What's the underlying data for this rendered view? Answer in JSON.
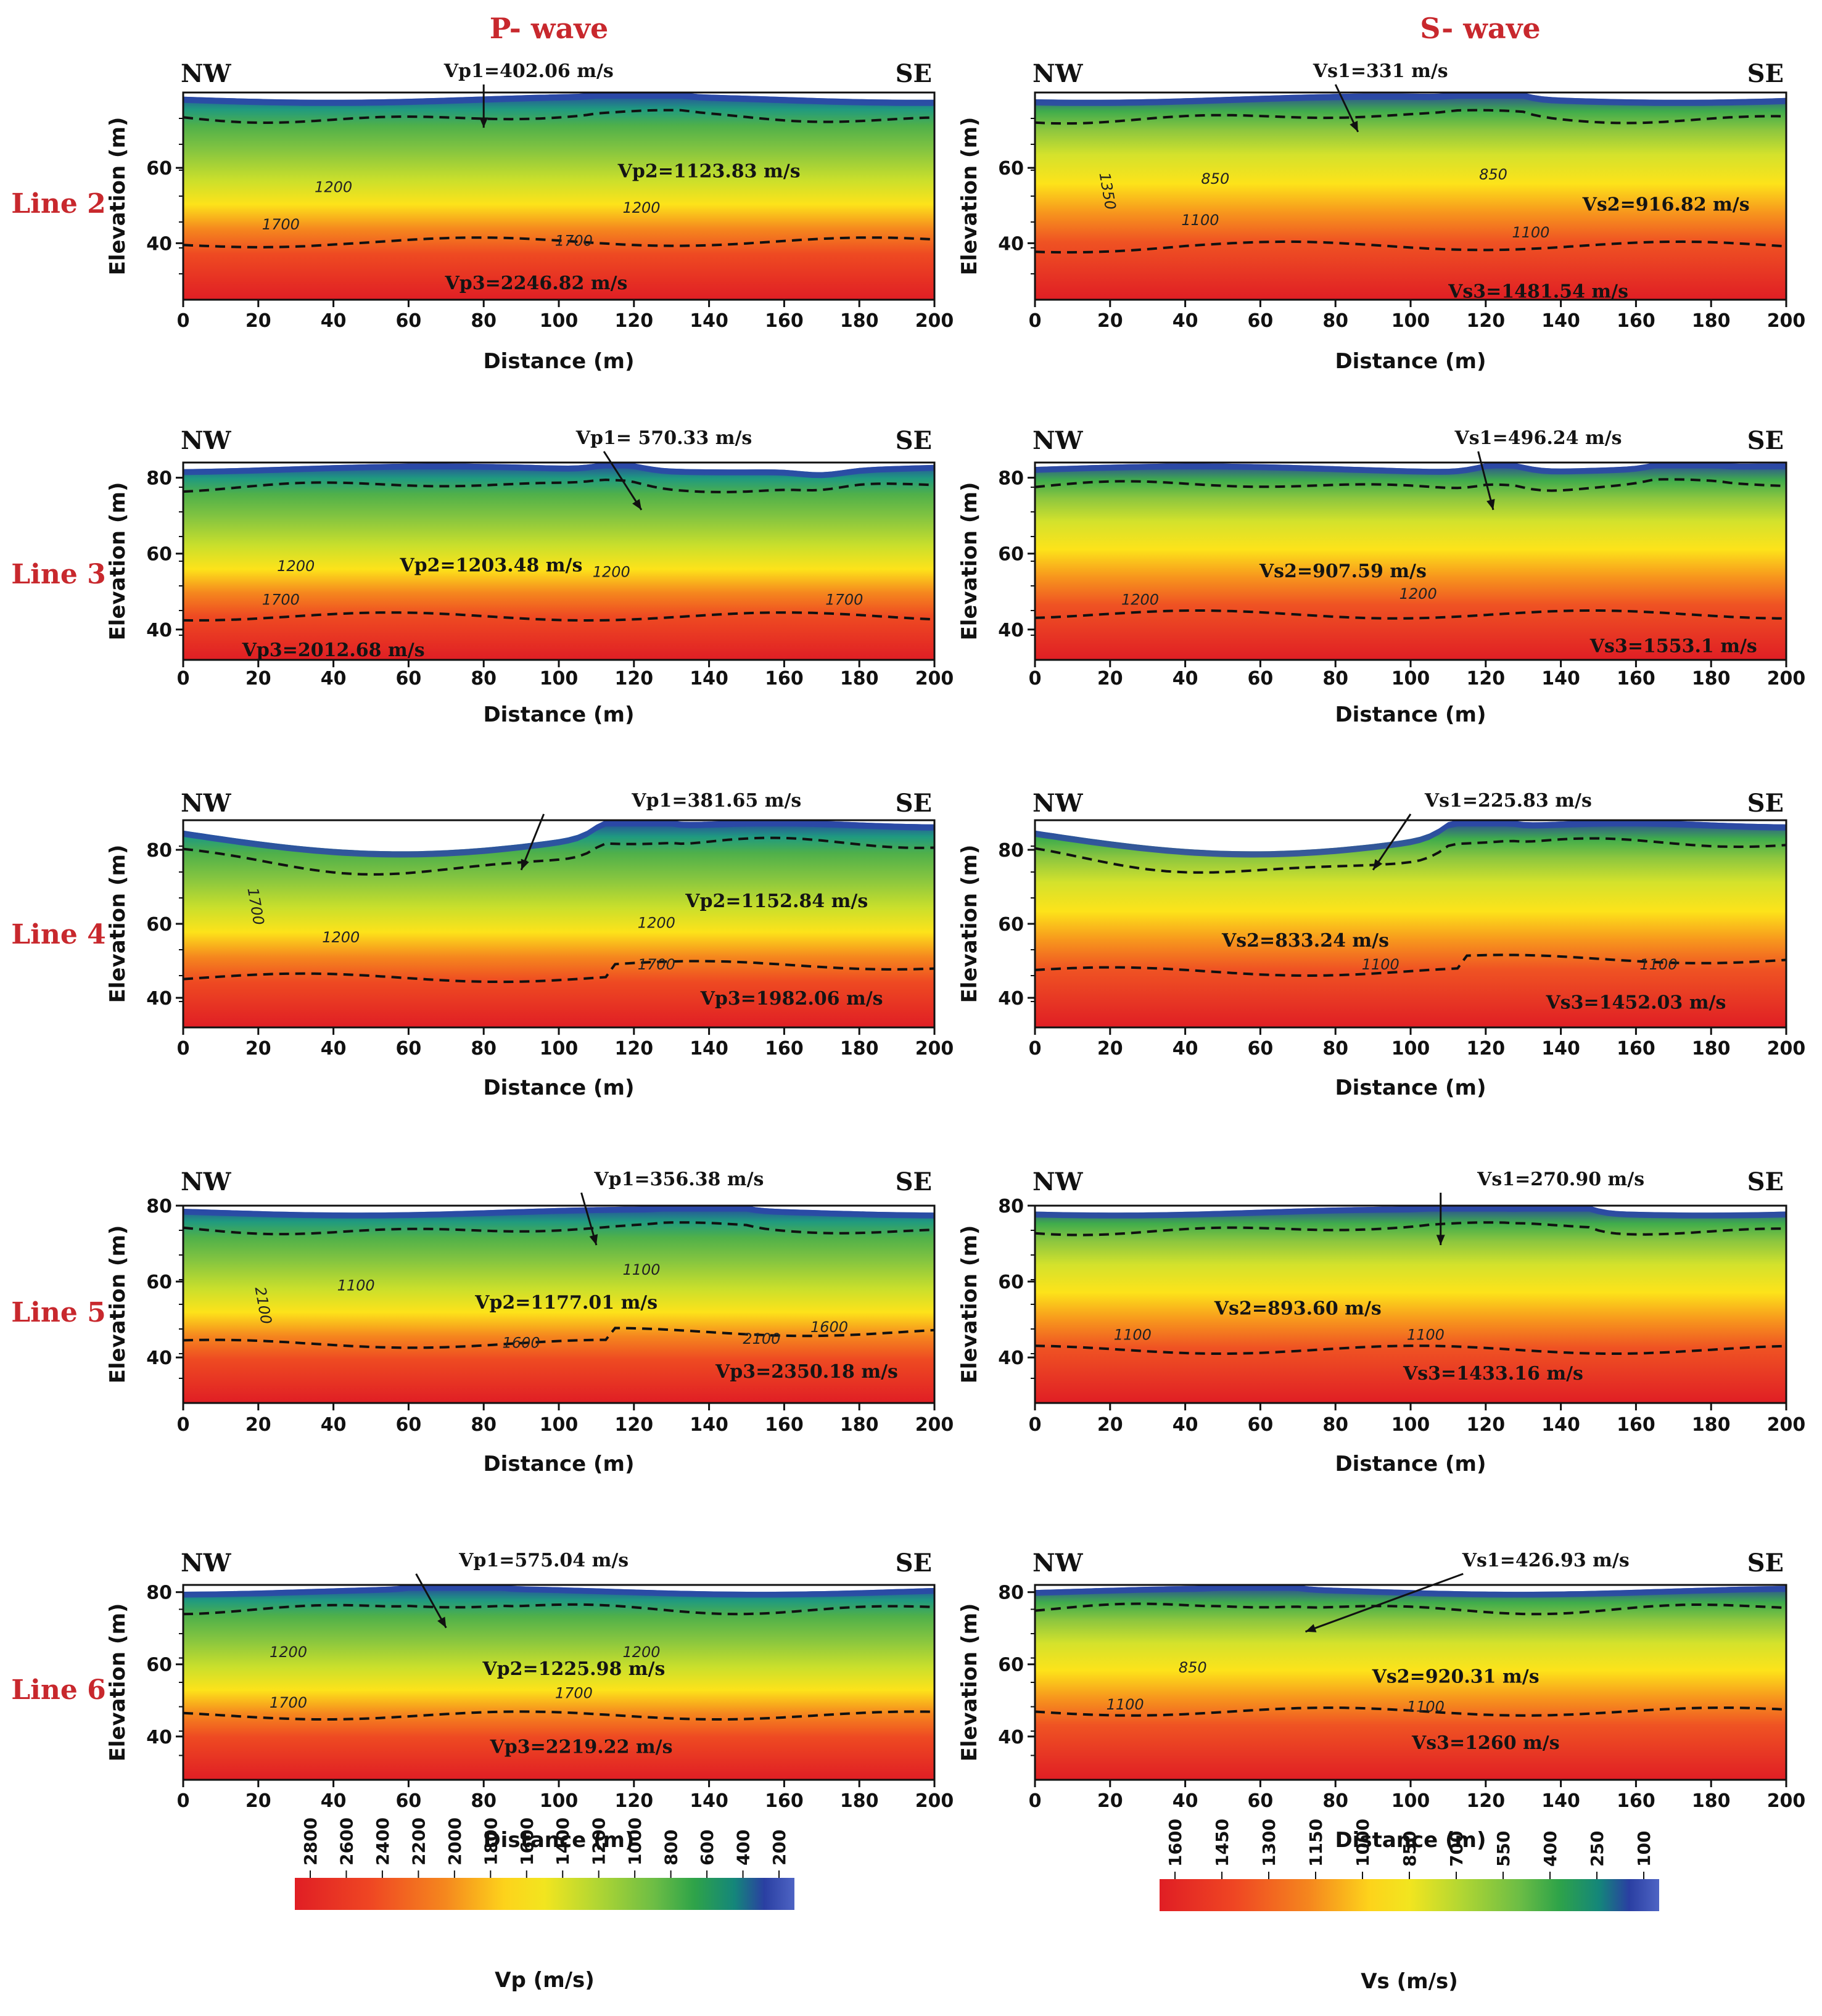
{
  "headers": {
    "p": "P- wave",
    "s": "S- wave"
  },
  "direction": {
    "left": "NW",
    "right": "SE"
  },
  "axes": {
    "xlabel": "Distance (m)",
    "ylabel": "Elevation (m)"
  },
  "colorbars": [
    {
      "id": "vp",
      "label": "Vp (m/s)",
      "ticks": [
        "2800",
        "2600",
        "2400",
        "2200",
        "2000",
        "1800",
        "1600",
        "1400",
        "1200",
        "1000",
        "800",
        "600",
        "400",
        "200"
      ]
    },
    {
      "id": "vs",
      "label": "Vs (m/s)",
      "ticks": [
        "1600",
        "1450",
        "1300",
        "1150",
        "1000",
        "850",
        "700",
        "550",
        "400",
        "250",
        "100"
      ]
    }
  ],
  "chart_data": [
    {
      "type": "heatmap",
      "line": "Line 2",
      "wave": "P",
      "xlim": [
        0,
        200
      ],
      "xticks": [
        0,
        20,
        40,
        60,
        80,
        100,
        120,
        140,
        160,
        180,
        200
      ],
      "ylim": [
        25,
        80
      ],
      "yticks": [
        40,
        60
      ],
      "layers": [
        "Vp1=402.06 m/s",
        "Vp2=1123.83 m/s",
        "Vp3=2246.82 m/s"
      ],
      "contours": [
        "1200",
        "1200",
        "1700",
        "1700"
      ]
    },
    {
      "type": "heatmap",
      "line": "Line 2",
      "wave": "S",
      "xlim": [
        0,
        200
      ],
      "xticks": [
        0,
        20,
        40,
        60,
        80,
        100,
        120,
        140,
        160,
        180,
        200
      ],
      "ylim": [
        25,
        80
      ],
      "yticks": [
        40,
        60
      ],
      "layers": [
        "Vs1=331 m/s",
        "Vs2=916.82 m/s",
        "Vs3=1481.54 m/s"
      ],
      "contours": [
        "1350",
        "850",
        "850",
        "1100",
        "1100"
      ]
    },
    {
      "type": "heatmap",
      "line": "Line 3",
      "wave": "P",
      "xlim": [
        0,
        200
      ],
      "xticks": [
        0,
        20,
        40,
        60,
        80,
        100,
        120,
        140,
        160,
        180,
        200
      ],
      "ylim": [
        32,
        84
      ],
      "yticks": [
        40,
        60,
        80
      ],
      "layers": [
        "Vp1= 570.33 m/s",
        "Vp2=1203.48 m/s",
        "Vp3=2012.68 m/s"
      ],
      "contours": [
        "1200",
        "1200",
        "1700",
        "1700"
      ]
    },
    {
      "type": "heatmap",
      "line": "Line 3",
      "wave": "S",
      "xlim": [
        0,
        200
      ],
      "xticks": [
        0,
        20,
        40,
        60,
        80,
        100,
        120,
        140,
        160,
        180,
        200
      ],
      "ylim": [
        32,
        84
      ],
      "yticks": [
        40,
        60,
        80
      ],
      "layers": [
        "Vs1=496.24 m/s",
        "Vs2=907.59 m/s",
        "Vs3=1553.1 m/s"
      ],
      "contours": [
        "1200",
        "1200"
      ]
    },
    {
      "type": "heatmap",
      "line": "Line 4",
      "wave": "P",
      "xlim": [
        0,
        200
      ],
      "xticks": [
        0,
        20,
        40,
        60,
        80,
        100,
        120,
        140,
        160,
        180,
        200
      ],
      "ylim": [
        32,
        88
      ],
      "yticks": [
        40,
        60,
        80
      ],
      "layers": [
        "Vp1=381.65 m/s",
        "Vp2=1152.84 m/s",
        "Vp3=1982.06 m/s"
      ],
      "contours": [
        "1700",
        "1200",
        "1200",
        "1700"
      ]
    },
    {
      "type": "heatmap",
      "line": "Line 4",
      "wave": "S",
      "xlim": [
        0,
        200
      ],
      "xticks": [
        0,
        20,
        40,
        60,
        80,
        100,
        120,
        140,
        160,
        180,
        200
      ],
      "ylim": [
        32,
        88
      ],
      "yticks": [
        40,
        60,
        80
      ],
      "layers": [
        "Vs1=225.83 m/s",
        "Vs2=833.24 m/s",
        "Vs3=1452.03 m/s"
      ],
      "contours": [
        "1100",
        "1100"
      ]
    },
    {
      "type": "heatmap",
      "line": "Line 5",
      "wave": "P",
      "xlim": [
        0,
        200
      ],
      "xticks": [
        0,
        20,
        40,
        60,
        80,
        100,
        120,
        140,
        160,
        180,
        200
      ],
      "ylim": [
        28,
        80
      ],
      "yticks": [
        40,
        60,
        80
      ],
      "layers": [
        "Vp1=356.38 m/s",
        "Vp2=1177.01 m/s",
        "Vp3=2350.18 m/s"
      ],
      "contours": [
        "2100",
        "1100",
        "1100",
        "1600",
        "1600",
        "2100"
      ]
    },
    {
      "type": "heatmap",
      "line": "Line 5",
      "wave": "S",
      "xlim": [
        0,
        200
      ],
      "xticks": [
        0,
        20,
        40,
        60,
        80,
        100,
        120,
        140,
        160,
        180,
        200
      ],
      "ylim": [
        28,
        80
      ],
      "yticks": [
        40,
        60,
        80
      ],
      "layers": [
        "Vs1=270.90 m/s",
        "Vs2=893.60 m/s",
        "Vs3=1433.16 m/s"
      ],
      "contours": [
        "1100",
        "1100"
      ]
    },
    {
      "type": "heatmap",
      "line": "Line 6",
      "wave": "P",
      "xlim": [
        0,
        200
      ],
      "xticks": [
        0,
        20,
        40,
        60,
        80,
        100,
        120,
        140,
        160,
        180,
        200
      ],
      "ylim": [
        28,
        82
      ],
      "yticks": [
        40,
        60,
        80
      ],
      "layers": [
        "Vp1=575.04 m/s",
        "Vp2=1225.98 m/s",
        "Vp3=2219.22 m/s"
      ],
      "contours": [
        "1200",
        "1200",
        "1700",
        "1700"
      ]
    },
    {
      "type": "heatmap",
      "line": "Line 6",
      "wave": "S",
      "xlim": [
        0,
        200
      ],
      "xticks": [
        0,
        20,
        40,
        60,
        80,
        100,
        120,
        140,
        160,
        180,
        200
      ],
      "ylim": [
        28,
        82
      ],
      "yticks": [
        40,
        60,
        80
      ],
      "layers": [
        "Vs1=426.93 m/s",
        "Vs2=920.31 m/s",
        "Vs3=1260 m/s"
      ],
      "contours": [
        "850",
        "1100",
        "1100"
      ]
    }
  ]
}
